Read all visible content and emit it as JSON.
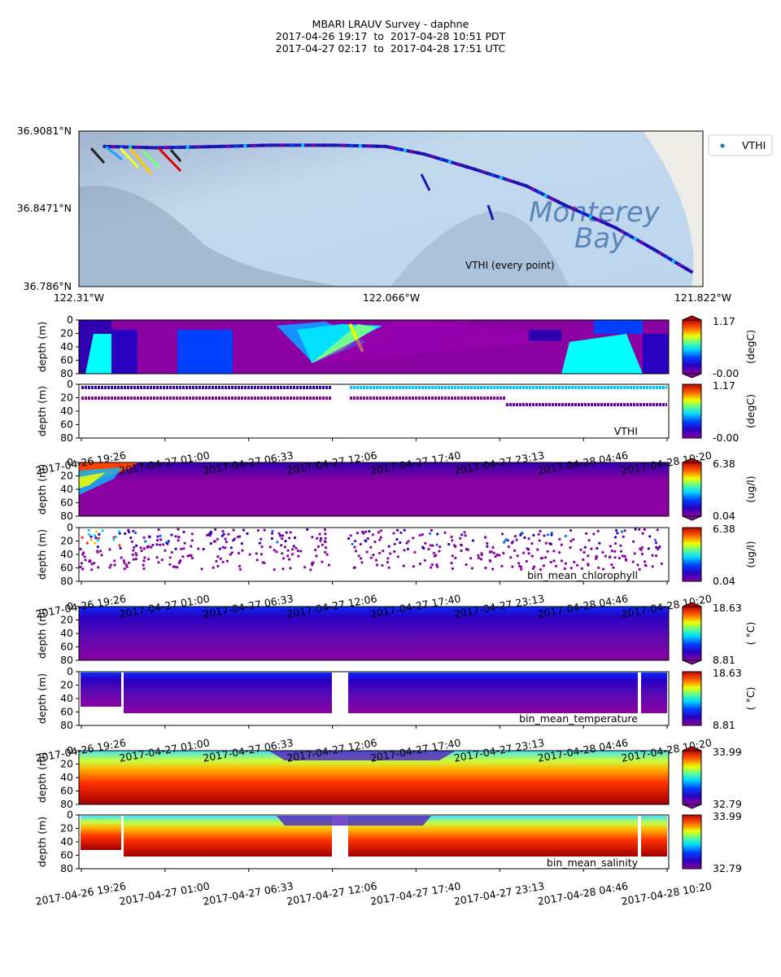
{
  "title": {
    "line1": "MBARI LRAUV Survey - daphne",
    "line2": "2017-04-26 19:17  to  2017-04-28 10:51 PDT",
    "line3": "2017-04-27 02:17  to  2017-04-28 17:51 UTC"
  },
  "chart_data": [
    {
      "type": "scatter",
      "name": "map",
      "lat_ticks": [
        "36.9081°N",
        "36.8471°N",
        "36.786°N"
      ],
      "lon_ticks": [
        "122.31°W",
        "122.066°W",
        "121.822°W"
      ],
      "lat_range": [
        36.786,
        36.9081
      ],
      "lon_range": [
        -122.31,
        -121.822
      ],
      "legend_label": "VTHI",
      "annotation": "VTHI (every point)",
      "map_label_1": "Monterey",
      "map_label_2": "Bay",
      "track": [
        [
          -122.29,
          36.896
        ],
        [
          -122.25,
          36.895
        ],
        [
          -122.2,
          36.896
        ],
        [
          -122.16,
          36.897
        ],
        [
          -122.11,
          36.897
        ],
        [
          -122.07,
          36.896
        ],
        [
          -122.04,
          36.89
        ],
        [
          -122.0,
          36.878
        ],
        [
          -121.96,
          36.865
        ],
        [
          -121.93,
          36.85
        ],
        [
          -121.89,
          36.832
        ],
        [
          -121.86,
          36.815
        ],
        [
          -121.83,
          36.797
        ]
      ]
    },
    {
      "type": "heatmap",
      "name": "vthi-interpolated",
      "ylabel": "depth (m)",
      "ylim": [
        80,
        0
      ],
      "yticks": [
        "0",
        "20",
        "40",
        "60",
        "80"
      ],
      "colorbar": {
        "label": "(degC)",
        "max": "1.17",
        "min": "-0.00"
      }
    },
    {
      "type": "scatter",
      "name": "vthi-samples",
      "ylabel": "depth (m)",
      "ylim": [
        80,
        0
      ],
      "yticks": [
        "0",
        "20",
        "40",
        "60",
        "80"
      ],
      "variable_label": "VTHI",
      "colorbar": {
        "label": "(degC)",
        "max": "1.17",
        "min": "-0.00"
      },
      "xticks": [
        "2017-04-26 19:26",
        "2017-04-27 01:00",
        "2017-04-27 06:33",
        "2017-04-27 12:06",
        "2017-04-27 17:40",
        "2017-04-27 23:13",
        "2017-04-28 04:46",
        "2017-04-28 10:20"
      ]
    },
    {
      "type": "heatmap",
      "name": "chlorophyll-interpolated",
      "ylabel": "depth (m)",
      "ylim": [
        80,
        0
      ],
      "yticks": [
        "0",
        "20",
        "40",
        "60",
        "80"
      ],
      "colorbar": {
        "label": "(ug/l)",
        "max": "6.38",
        "min": "0.04"
      }
    },
    {
      "type": "scatter",
      "name": "chlorophyll-samples",
      "ylabel": "depth (m)",
      "ylim": [
        80,
        0
      ],
      "yticks": [
        "0",
        "20",
        "40",
        "60",
        "80"
      ],
      "variable_label": "bin_mean_chlorophyll",
      "colorbar": {
        "label": "(ug/l)",
        "max": "6.38",
        "min": "0.04"
      },
      "xticks": [
        "2017-04-26 19:26",
        "2017-04-27 01:00",
        "2017-04-27 06:33",
        "2017-04-27 12:06",
        "2017-04-27 17:40",
        "2017-04-27 23:13",
        "2017-04-28 04:46",
        "2017-04-28 10:20"
      ]
    },
    {
      "type": "heatmap",
      "name": "temperature-interpolated",
      "ylabel": "depth (m)",
      "ylim": [
        80,
        0
      ],
      "yticks": [
        "0",
        "20",
        "40",
        "60",
        "80"
      ],
      "colorbar": {
        "label": "( °C)",
        "max": "18.63",
        "min": "8.81"
      }
    },
    {
      "type": "scatter",
      "name": "temperature-samples",
      "ylabel": "depth (m)",
      "ylim": [
        80,
        0
      ],
      "yticks": [
        "0",
        "20",
        "40",
        "60",
        "80"
      ],
      "variable_label": "bin_mean_temperature",
      "colorbar": {
        "label": "( °C)",
        "max": "18.63",
        "min": "8.81"
      },
      "xticks": [
        "2017-04-26 19:26",
        "2017-04-27 01:00",
        "2017-04-27 06:33",
        "2017-04-27 12:06",
        "2017-04-27 17:40",
        "2017-04-27 23:13",
        "2017-04-28 04:46",
        "2017-04-28 10:20"
      ]
    },
    {
      "type": "heatmap",
      "name": "salinity-interpolated",
      "ylabel": "depth (m)",
      "ylim": [
        80,
        0
      ],
      "yticks": [
        "0",
        "20",
        "40",
        "60",
        "80"
      ],
      "colorbar": {
        "label": "",
        "max": "33.99",
        "min": "32.79"
      }
    },
    {
      "type": "scatter",
      "name": "salinity-samples",
      "ylabel": "depth (m)",
      "ylim": [
        80,
        0
      ],
      "yticks": [
        "0",
        "20",
        "40",
        "60",
        "80"
      ],
      "variable_label": "bin_mean_salinity",
      "colorbar": {
        "label": "",
        "max": "33.99",
        "min": "32.79"
      },
      "xticks": [
        "2017-04-26 19:26",
        "2017-04-27 01:00",
        "2017-04-27 06:33",
        "2017-04-27 12:06",
        "2017-04-27 17:40",
        "2017-04-27 23:13",
        "2017-04-28 04:46",
        "2017-04-28 10:20"
      ]
    }
  ]
}
